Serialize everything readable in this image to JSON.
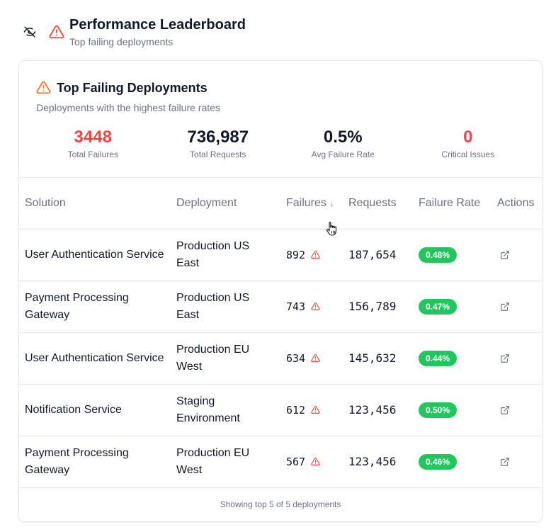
{
  "header": {
    "title": "Performance Leaderboard",
    "subtitle": "Top failing deployments",
    "visibility_icon": "eye-off-icon",
    "warning_icon": "alert-triangle-icon"
  },
  "card": {
    "title": "Top Failing Deployments",
    "subtitle": "Deployments with the highest failure rates",
    "stats": [
      {
        "value": "3448",
        "label": "Total Failures"
      },
      {
        "value": "736,987",
        "label": "Total Requests"
      },
      {
        "value": "0.5%",
        "label": "Avg Failure Rate"
      },
      {
        "value": "0",
        "label": "Critical Issues"
      }
    ]
  },
  "table": {
    "columns": {
      "solution": "Solution",
      "deployment": "Deployment",
      "failures": "Failures",
      "sort_indicator": "↓",
      "requests": "Requests",
      "failure_rate": "Failure Rate",
      "actions": "Actions"
    },
    "rows": [
      {
        "solution": "User Authentication Service",
        "deployment": "Production US East",
        "failures": "892",
        "requests": "187,654",
        "rate": "0.48%"
      },
      {
        "solution": "Payment Processing Gateway",
        "deployment": "Production US East",
        "failures": "743",
        "requests": "156,789",
        "rate": "0.47%"
      },
      {
        "solution": "User Authentication Service",
        "deployment": "Production EU West",
        "failures": "634",
        "requests": "145,632",
        "rate": "0.44%"
      },
      {
        "solution": "Notification Service",
        "deployment": "Staging Environment",
        "failures": "612",
        "requests": "123,456",
        "rate": "0.50%"
      },
      {
        "solution": "Payment Processing Gateway",
        "deployment": "Production EU West",
        "failures": "567",
        "requests": "123,456",
        "rate": "0.46%"
      }
    ]
  },
  "footer": {
    "text": "Showing top 5 of 5 deployments"
  },
  "colors": {
    "accent_red": "#ef4444",
    "warning_orange": "#f97316",
    "badge_green": "#22c55e",
    "muted_text": "#6b7280",
    "border": "#e5e7eb"
  }
}
